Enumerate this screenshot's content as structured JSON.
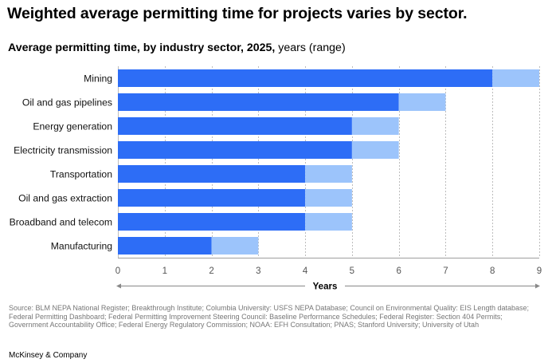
{
  "headline": "Weighted average permitting time for projects varies by sector.",
  "subtitle": {
    "bold": "Average permitting time, by industry sector, 2025,",
    "light": " years (range)"
  },
  "chart_data": {
    "type": "bar",
    "orientation": "horizontal",
    "stacked": true,
    "categories": [
      "Mining",
      "Oil and gas pipelines",
      "Energy generation",
      "Electricity transmission",
      "Transportation",
      "Oil and gas extraction",
      "Broadband and telecom",
      "Manufacturing"
    ],
    "series": [
      {
        "values": [
          8,
          6,
          5,
          5,
          4,
          4,
          4,
          2
        ],
        "color": "#2d6df6"
      },
      {
        "values": [
          1,
          1,
          1,
          1,
          1,
          1,
          1,
          1
        ],
        "color": "#9cc4fb"
      }
    ],
    "range_ends": [
      9,
      7,
      6,
      6,
      5,
      5,
      5,
      3
    ],
    "xlim": [
      0,
      9
    ],
    "xticks": [
      "0",
      "1",
      "2",
      "3",
      "4",
      "5",
      "6",
      "7",
      "8",
      "9"
    ],
    "xlabel": "Years",
    "grid": "vertical-dashed"
  },
  "source": "Source: BLM NEPA National Register; Breakthrough Institute; Columbia University: USFS NEPA Database; Council on Environmental Quality: EIS Length database; Federal Permitting Dashboard; Federal Permitting Improvement Steering Council: Baseline Performance Schedules; Federal Register: Section 404 Permits; Government Accountability Office; Federal Energy Regulatory Commission; NOAA: EFH Consultation; PNAS; Stanford University; University of Utah",
  "brand": "McKinsey & Company"
}
